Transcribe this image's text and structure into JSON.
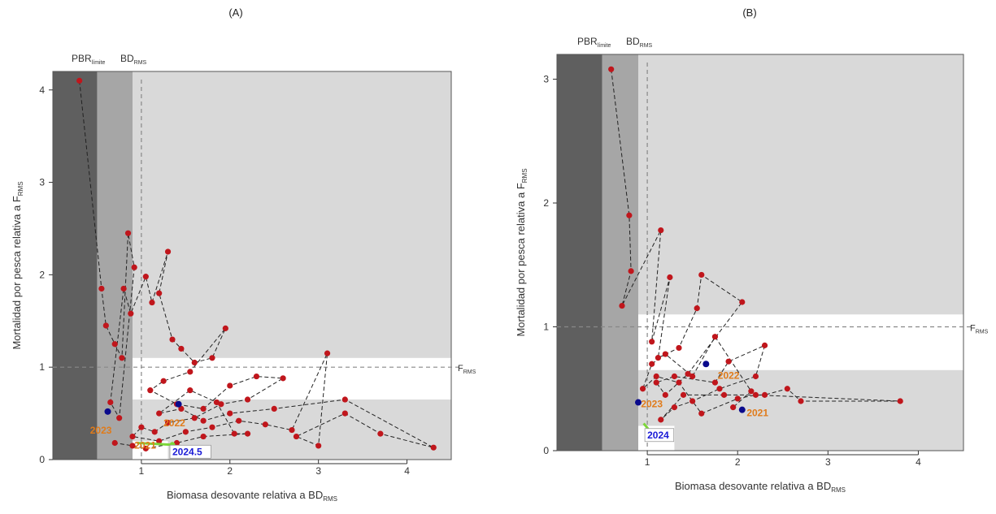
{
  "panels": [
    {
      "tag": "(A)",
      "threshold_labels": {
        "pbr_main": "PBR",
        "pbr_sub": "límite",
        "bd_main": "BD",
        "bd_sub": "RMS",
        "f_main": "F",
        "f_sub": "RMS"
      },
      "ylabel": {
        "main": "Mortalidad por pesca relativa a F",
        "sub": "RMS"
      },
      "xlabel": {
        "main": "Biomasa desovante relativa a BD",
        "sub": "RMS"
      },
      "chart_data": {
        "type": "scatter",
        "xlim": [
          0,
          4.5
        ],
        "ylim": [
          0,
          4.2
        ],
        "xticks": [
          1,
          2,
          3,
          4
        ],
        "yticks": [
          0,
          1,
          2,
          3,
          4
        ],
        "zones": {
          "pbr_limit": 0.5,
          "bd_upper": 0.9,
          "f_lower": 0.65,
          "f_upper": 1.1
        },
        "bd_rms_line": 1.0,
        "f_rms_line": 1.0,
        "trajectory": [
          [
            0.3,
            4.1
          ],
          [
            0.55,
            1.85
          ],
          [
            0.6,
            1.45
          ],
          [
            0.7,
            1.25
          ],
          [
            0.78,
            1.1
          ],
          [
            0.85,
            2.45
          ],
          [
            0.92,
            2.08
          ],
          [
            0.75,
            0.45
          ],
          [
            0.65,
            0.62
          ],
          [
            0.8,
            1.85
          ],
          [
            0.88,
            1.58
          ],
          [
            1.05,
            1.98
          ],
          [
            1.12,
            1.7
          ],
          [
            1.3,
            2.25
          ],
          [
            1.2,
            1.8
          ],
          [
            1.35,
            1.3
          ],
          [
            1.45,
            1.2
          ],
          [
            1.6,
            1.05
          ],
          [
            1.8,
            1.1
          ],
          [
            1.95,
            1.42
          ],
          [
            1.55,
            0.95
          ],
          [
            1.25,
            0.85
          ],
          [
            1.1,
            0.75
          ],
          [
            1.4,
            0.6
          ],
          [
            1.7,
            0.55
          ],
          [
            2.0,
            0.8
          ],
          [
            2.3,
            0.9
          ],
          [
            2.6,
            0.88
          ],
          [
            2.2,
            0.65
          ],
          [
            1.9,
            0.6
          ],
          [
            1.6,
            0.45
          ],
          [
            1.3,
            0.4
          ],
          [
            1.15,
            0.3
          ],
          [
            1.0,
            0.35
          ],
          [
            0.9,
            0.25
          ],
          [
            1.2,
            0.2
          ],
          [
            1.5,
            0.3
          ],
          [
            1.8,
            0.35
          ],
          [
            2.1,
            0.42
          ],
          [
            2.4,
            0.38
          ],
          [
            2.7,
            0.32
          ],
          [
            3.1,
            1.15
          ],
          [
            3.0,
            0.15
          ],
          [
            2.75,
            0.25
          ],
          [
            3.3,
            0.5
          ],
          [
            3.7,
            0.28
          ],
          [
            4.3,
            0.13
          ],
          [
            3.3,
            0.65
          ],
          [
            2.5,
            0.55
          ],
          [
            2.0,
            0.5
          ],
          [
            1.7,
            0.42
          ],
          [
            1.45,
            0.55
          ],
          [
            1.2,
            0.5
          ],
          [
            1.55,
            0.75
          ],
          [
            1.85,
            0.62
          ],
          [
            2.05,
            0.28
          ],
          [
            2.2,
            0.28
          ],
          [
            1.7,
            0.25
          ],
          [
            1.4,
            0.18
          ],
          [
            1.05,
            0.12
          ],
          [
            0.9,
            0.15
          ],
          [
            0.7,
            0.18
          ]
        ],
        "blue_points": [
          [
            0.62,
            0.52
          ],
          [
            1.42,
            0.6
          ]
        ],
        "green_segment": [
          [
            0.95,
            0.18
          ],
          [
            1.35,
            0.16
          ]
        ],
        "annotations": [
          {
            "text": "2024.5",
            "x": 1.35,
            "y": 0.05,
            "color": "#1a1ad6",
            "boxed": true
          },
          {
            "text": "2023",
            "x": 0.42,
            "y": 0.28,
            "color": "#e07b1a"
          },
          {
            "text": "2022",
            "x": 1.25,
            "y": 0.36,
            "color": "#e07b1a"
          },
          {
            "text": "2021",
            "x": 0.92,
            "y": 0.12,
            "color": "#e07b1a"
          }
        ]
      }
    },
    {
      "tag": "(B)",
      "threshold_labels": {
        "pbr_main": "PBR",
        "pbr_sub": "límite",
        "bd_main": "BD",
        "bd_sub": "RMS",
        "f_main": "F",
        "f_sub": "RMS"
      },
      "ylabel": {
        "main": "Mortalidad por pesca relativa a F",
        "sub": "RMS"
      },
      "xlabel": {
        "main": "Biomasa desovante relativa a BD",
        "sub": "RMS"
      },
      "chart_data": {
        "type": "scatter",
        "xlim": [
          0,
          4.5
        ],
        "ylim": [
          0,
          3.2
        ],
        "xticks": [
          1,
          2,
          3,
          4
        ],
        "yticks": [
          0,
          1,
          2,
          3
        ],
        "zones": {
          "pbr_limit": 0.5,
          "bd_upper": 0.9,
          "f_lower": 0.65,
          "f_upper": 1.1
        },
        "bd_rms_line": 1.0,
        "f_rms_line": 1.0,
        "trajectory": [
          [
            0.6,
            3.08
          ],
          [
            0.8,
            1.9
          ],
          [
            0.82,
            1.45
          ],
          [
            0.72,
            1.17
          ],
          [
            1.15,
            1.78
          ],
          [
            1.05,
            0.88
          ],
          [
            1.25,
            1.4
          ],
          [
            1.12,
            0.75
          ],
          [
            1.35,
            0.83
          ],
          [
            1.55,
            1.15
          ],
          [
            1.6,
            1.42
          ],
          [
            2.05,
            1.2
          ],
          [
            1.45,
            0.62
          ],
          [
            1.2,
            0.45
          ],
          [
            1.1,
            0.55
          ],
          [
            1.3,
            0.6
          ],
          [
            1.75,
            0.55
          ],
          [
            1.9,
            0.72
          ],
          [
            2.3,
            0.85
          ],
          [
            2.2,
            0.6
          ],
          [
            1.8,
            0.5
          ],
          [
            1.5,
            0.4
          ],
          [
            1.3,
            0.35
          ],
          [
            1.15,
            0.25
          ],
          [
            1.4,
            0.45
          ],
          [
            1.85,
            0.45
          ],
          [
            2.3,
            0.45
          ],
          [
            2.55,
            0.5
          ],
          [
            2.7,
            0.4
          ],
          [
            3.8,
            0.4
          ],
          [
            2.2,
            0.45
          ],
          [
            2.0,
            0.42
          ],
          [
            1.6,
            0.3
          ],
          [
            1.35,
            0.55
          ],
          [
            1.1,
            0.6
          ],
          [
            0.95,
            0.5
          ],
          [
            1.05,
            0.7
          ],
          [
            1.2,
            0.78
          ],
          [
            1.5,
            0.6
          ],
          [
            1.75,
            0.92
          ],
          [
            2.15,
            0.48
          ],
          [
            1.95,
            0.35
          ]
        ],
        "blue_points": [
          [
            0.9,
            0.39
          ],
          [
            1.65,
            0.7
          ],
          [
            2.05,
            0.33
          ]
        ],
        "green_segment": [
          [
            0.96,
            0.22
          ],
          [
            1.05,
            0.14
          ]
        ],
        "annotations": [
          {
            "text": "2024",
            "x": 1.0,
            "y": 0.1,
            "color": "#1a1ad6",
            "boxed": true
          },
          {
            "text": "2023",
            "x": 0.93,
            "y": 0.35,
            "color": "#e07b1a"
          },
          {
            "text": "2022",
            "x": 1.78,
            "y": 0.58,
            "color": "#e07b1a"
          },
          {
            "text": "2021",
            "x": 2.1,
            "y": 0.28,
            "color": "#e07b1a"
          }
        ]
      }
    }
  ]
}
